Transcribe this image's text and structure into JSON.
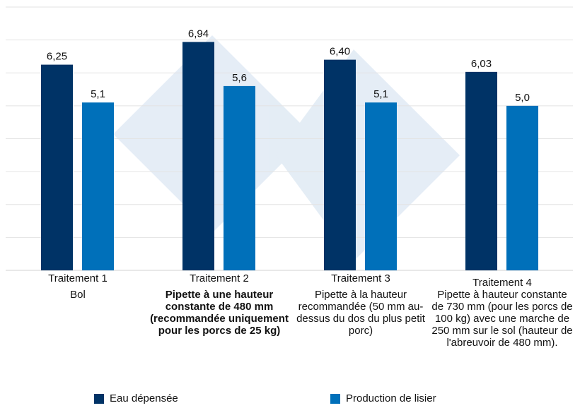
{
  "chart_data": {
    "type": "bar",
    "categories": [
      "Traitement 1",
      "Traitement 2",
      "Traitement 3",
      "Traitement 4"
    ],
    "descriptions": [
      "Bol",
      "Pipette à une hauteur constante de 480 mm (recommandée uniquement pour les porcs de 25 kg)",
      "Pipette à la hauteur recommandée (50 mm au-dessus du dos du plus petit porc)",
      "Pipette à hauteur constante de 730 mm (pour les porcs de 100 kg) avec une marche de 250 mm sur le sol (hauteur de l'abreuvoir de 480 mm)."
    ],
    "series": [
      {
        "name": "Eau dépensée",
        "values": [
          6.25,
          6.94,
          6.4,
          6.03
        ],
        "labels": [
          "6,25",
          "6,94",
          "6,40",
          "6,03"
        ],
        "color": "#003366"
      },
      {
        "name": "Production de lisier",
        "values": [
          5.1,
          5.6,
          5.1,
          5.0
        ],
        "labels": [
          "5,1",
          "5,6",
          "5,1",
          "5,0"
        ],
        "color": "#0070BA"
      }
    ],
    "ylim": [
      0,
      8
    ],
    "grid": true,
    "legend": "bottom"
  }
}
